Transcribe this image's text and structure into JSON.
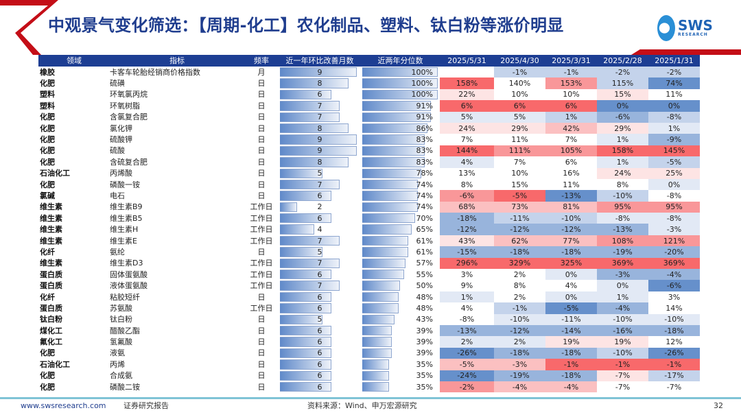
{
  "title": "中观景气变化筛选：【周期-化工】农化制品、塑料、钛白粉等涨价明显",
  "logo": {
    "text": "SWS",
    "sub": "RESEARCH"
  },
  "colors": {
    "header": "#1d3e93",
    "title": "#1f3d8e",
    "accent_red": "#c40e17",
    "tones": {
      "r4": "#f8696b",
      "r3": "#f99799",
      "r2": "#fbc0c1",
      "r1": "#fde4e4",
      "w": "#ffffff",
      "b1": "#e2e9f5",
      "b2": "#c4d3eb",
      "b3": "#98b4dc",
      "b4": "#6690cb"
    }
  },
  "headers": [
    "领域",
    "指标",
    "频率",
    "近一年环比改善月数",
    "近两年分位数",
    "2025/5/31",
    "2025/4/30",
    "2025/3/31",
    "2025/2/28",
    "2025/1/31"
  ],
  "rows": [
    [
      "橡胶",
      "卡客车轮胎经销商价格指数",
      "月",
      "9",
      "100%",
      [
        "",
        "-1%",
        "-1%",
        "-2%",
        "-2%"
      ],
      [
        "w",
        "b2",
        "b2",
        "b2",
        "b2"
      ]
    ],
    [
      "化肥",
      "硫磺",
      "日",
      "8",
      "100%",
      [
        "158%",
        "140%",
        "153%",
        "115%",
        "74%"
      ],
      [
        "r4",
        "w",
        "r3",
        "b2",
        "b4"
      ]
    ],
    [
      "塑料",
      "环氧氯丙烷",
      "日",
      "6",
      "100%",
      [
        "22%",
        "10%",
        "10%",
        "15%",
        "11%"
      ],
      [
        "r1",
        "w",
        "w",
        "r1",
        "w"
      ]
    ],
    [
      "塑料",
      "环氧树脂",
      "日",
      "7",
      "91%",
      [
        "6%",
        "6%",
        "6%",
        "0%",
        "0%"
      ],
      [
        "r4",
        "r4",
        "r4",
        "b4",
        "b4"
      ]
    ],
    [
      "化肥",
      "含氯复合肥",
      "日",
      "7",
      "91%",
      [
        "5%",
        "5%",
        "1%",
        "-6%",
        "-8%"
      ],
      [
        "b1",
        "b1",
        "b2",
        "b3",
        "b2"
      ]
    ],
    [
      "化肥",
      "氯化钾",
      "日",
      "8",
      "86%",
      [
        "24%",
        "29%",
        "42%",
        "29%",
        "1%"
      ],
      [
        "r1",
        "r1",
        "r2",
        "r1",
        "b1"
      ]
    ],
    [
      "化肥",
      "硫酸钾",
      "日",
      "9",
      "83%",
      [
        "7%",
        "11%",
        "7%",
        "1%",
        "-9%"
      ],
      [
        "w",
        "w",
        "w",
        "b1",
        "b3"
      ]
    ],
    [
      "化肥",
      "硫酸",
      "日",
      "9",
      "83%",
      [
        "144%",
        "111%",
        "105%",
        "158%",
        "145%"
      ],
      [
        "r4",
        "r3",
        "r3",
        "r4",
        "r4"
      ]
    ],
    [
      "化肥",
      "含硫复合肥",
      "日",
      "8",
      "83%",
      [
        "4%",
        "7%",
        "6%",
        "1%",
        "-5%"
      ],
      [
        "b1",
        "w",
        "w",
        "b1",
        "b2"
      ]
    ],
    [
      "石油化工",
      "丙烯酸",
      "日",
      "5",
      "78%",
      [
        "13%",
        "10%",
        "16%",
        "24%",
        "25%"
      ],
      [
        "w",
        "w",
        "w",
        "r1",
        "r1"
      ]
    ],
    [
      "化肥",
      "磷酸一铵",
      "日",
      "7",
      "74%",
      [
        "8%",
        "15%",
        "11%",
        "8%",
        "0%"
      ],
      [
        "w",
        "w",
        "w",
        "w",
        "b1"
      ]
    ],
    [
      "氯碱",
      "电石",
      "日",
      "6",
      "74%",
      [
        "-6%",
        "-5%",
        "-13%",
        "-10%",
        "-8%"
      ],
      [
        "r3",
        "r4",
        "b4",
        "b2",
        "w"
      ]
    ],
    [
      "维生素",
      "维生素B9",
      "工作日",
      "2",
      "74%",
      [
        "68%",
        "73%",
        "81%",
        "95%",
        "95%"
      ],
      [
        "r2",
        "r2",
        "r2",
        "r3",
        "r3"
      ]
    ],
    [
      "维生素",
      "维生素B5",
      "工作日",
      "6",
      "70%",
      [
        "-18%",
        "-11%",
        "-10%",
        "-8%",
        "-8%"
      ],
      [
        "b3",
        "b2",
        "b2",
        "b1",
        "b1"
      ]
    ],
    [
      "维生素",
      "维生素H",
      "工作日",
      "4",
      "65%",
      [
        "-12%",
        "-12%",
        "-12%",
        "-13%",
        "-3%"
      ],
      [
        "b3",
        "b3",
        "b3",
        "b3",
        "b1"
      ]
    ],
    [
      "维生素",
      "维生素E",
      "工作日",
      "7",
      "61%",
      [
        "43%",
        "62%",
        "77%",
        "108%",
        "121%"
      ],
      [
        "r1",
        "r2",
        "r2",
        "r3",
        "r3"
      ]
    ],
    [
      "化纤",
      "氨纶",
      "日",
      "5",
      "61%",
      [
        "-15%",
        "-18%",
        "-18%",
        "-19%",
        "-20%"
      ],
      [
        "b3",
        "b3",
        "b3",
        "b3",
        "b3"
      ]
    ],
    [
      "维生素",
      "维生素D3",
      "工作日",
      "7",
      "57%",
      [
        "296%",
        "329%",
        "325%",
        "369%",
        "369%"
      ],
      [
        "r4",
        "r4",
        "r4",
        "r4",
        "r4"
      ]
    ],
    [
      "蛋白质",
      "固体蛋氨酸",
      "工作日",
      "6",
      "55%",
      [
        "3%",
        "2%",
        "0%",
        "-3%",
        "-4%"
      ],
      [
        "w",
        "w",
        "b1",
        "b3",
        "b3"
      ]
    ],
    [
      "蛋白质",
      "液体蛋氨酸",
      "工作日",
      "7",
      "50%",
      [
        "9%",
        "8%",
        "4%",
        "0%",
        "-6%"
      ],
      [
        "w",
        "w",
        "w",
        "b1",
        "b4"
      ]
    ],
    [
      "化纤",
      "粘胶短纤",
      "日",
      "6",
      "48%",
      [
        "1%",
        "2%",
        "0%",
        "1%",
        "3%"
      ],
      [
        "b1",
        "w",
        "b1",
        "b1",
        "w"
      ]
    ],
    [
      "蛋白质",
      "苏氨酸",
      "工作日",
      "6",
      "48%",
      [
        "4%",
        "-1%",
        "-5%",
        "-4%",
        "14%"
      ],
      [
        "w",
        "b2",
        "b4",
        "b3",
        "w"
      ]
    ],
    [
      "钛白粉",
      "钛白粉",
      "日",
      "5",
      "43%",
      [
        "-8%",
        "-10%",
        "-11%",
        "-10%",
        "-10%"
      ],
      [
        "w",
        "b1",
        "b1",
        "b1",
        "b1"
      ]
    ],
    [
      "煤化工",
      "醋酸乙酯",
      "日",
      "6",
      "39%",
      [
        "-13%",
        "-12%",
        "-14%",
        "-16%",
        "-18%"
      ],
      [
        "b3",
        "b3",
        "b3",
        "b3",
        "b3"
      ]
    ],
    [
      "氟化工",
      "氢氟酸",
      "日",
      "6",
      "39%",
      [
        "2%",
        "2%",
        "19%",
        "19%",
        "12%"
      ],
      [
        "b1",
        "b1",
        "r1",
        "r1",
        "w"
      ]
    ],
    [
      "化肥",
      "液氨",
      "日",
      "6",
      "39%",
      [
        "-26%",
        "-18%",
        "-18%",
        "-10%",
        "-26%"
      ],
      [
        "b4",
        "b3",
        "b3",
        "b2",
        "b4"
      ]
    ],
    [
      "石油化工",
      "丙烯",
      "日",
      "6",
      "35%",
      [
        "-5%",
        "-3%",
        "-1%",
        "-1%",
        "-1%"
      ],
      [
        "r2",
        "r2",
        "r4",
        "r4",
        "r4"
      ]
    ],
    [
      "化肥",
      "合成氨",
      "日",
      "6",
      "35%",
      [
        "-24%",
        "-19%",
        "-18%",
        "-7%",
        "-17%"
      ],
      [
        "b4",
        "b3",
        "b3",
        "r1",
        "b2"
      ]
    ],
    [
      "化肥",
      "磷酸二铵",
      "日",
      "6",
      "35%",
      [
        "-2%",
        "-4%",
        "-4%",
        "-7%",
        "-7%"
      ],
      [
        "r3",
        "r2",
        "r2",
        "w",
        "w"
      ]
    ]
  ],
  "footer": {
    "website": "www.swsresearch.com",
    "report_type": "证券研究报告",
    "source": "资料来源：Wind、申万宏源研究",
    "page": "32"
  }
}
